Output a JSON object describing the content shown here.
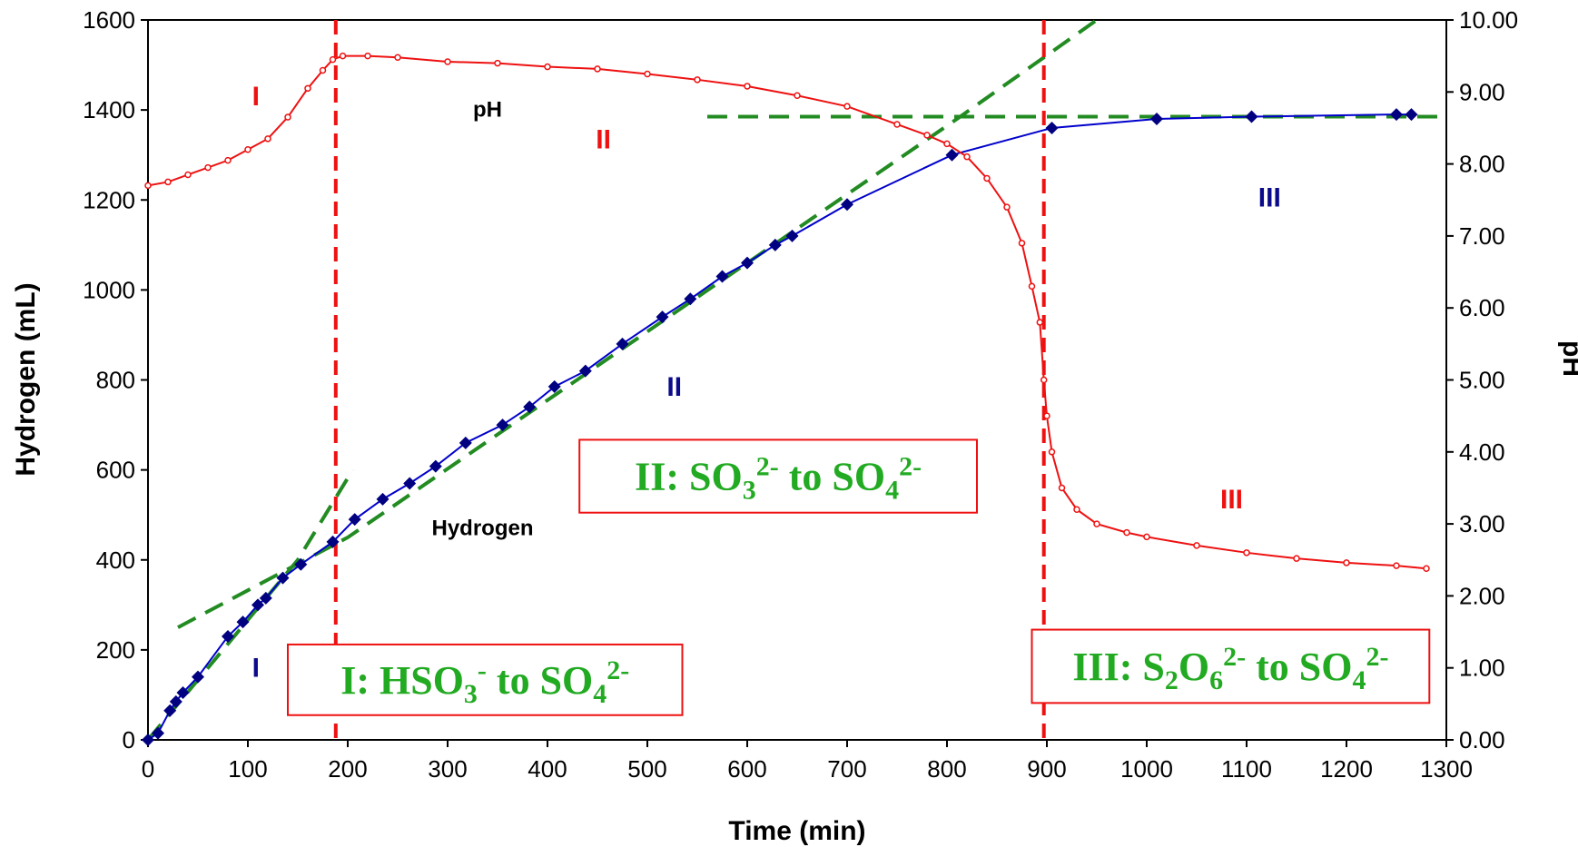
{
  "chart_data": {
    "type": "line",
    "title": "",
    "xlabel": "Time (min)",
    "ylabel": "Hydrogen (mL)",
    "y2label": "pH",
    "xlim": [
      0,
      1300
    ],
    "ylim": [
      0,
      1600
    ],
    "y2lim": [
      0,
      10
    ],
    "xticks": [
      "0",
      "100",
      "200",
      "300",
      "400",
      "500",
      "600",
      "700",
      "800",
      "900",
      "1000",
      "1100",
      "1200",
      "1300"
    ],
    "yticks": [
      "0",
      "200",
      "400",
      "600",
      "800",
      "1000",
      "1200",
      "1400",
      "1600"
    ],
    "y2ticks": [
      "0.00",
      "1.00",
      "2.00",
      "3.00",
      "4.00",
      "5.00",
      "6.00",
      "7.00",
      "8.00",
      "9.00",
      "10.00"
    ],
    "grid": false,
    "series": [
      {
        "name": "Hydrogen",
        "axis": "left",
        "color": "#0000cc",
        "marker_color": "#000080",
        "marker": "diamond",
        "x": [
          0,
          10,
          22,
          28,
          35,
          50,
          80,
          95,
          110,
          118,
          135,
          153,
          185,
          207,
          235,
          262,
          288,
          318,
          355,
          382,
          407,
          438,
          475,
          515,
          543,
          575,
          600,
          628,
          645,
          700,
          805,
          905,
          1010,
          1105,
          1250,
          1265
        ],
        "y": [
          0,
          15,
          65,
          85,
          105,
          140,
          230,
          262,
          300,
          315,
          360,
          390,
          440,
          490,
          535,
          570,
          608,
          660,
          700,
          740,
          785,
          820,
          880,
          940,
          980,
          1030,
          1060,
          1100,
          1120,
          1190,
          1300,
          1360,
          1380,
          1385,
          1390,
          1390
        ]
      },
      {
        "name": "pH",
        "axis": "right",
        "color": "#ee1111",
        "marker": "circle",
        "x": [
          0,
          20,
          40,
          60,
          80,
          100,
          120,
          140,
          160,
          175,
          185,
          195,
          220,
          250,
          300,
          350,
          400,
          450,
          500,
          550,
          600,
          650,
          700,
          750,
          780,
          800,
          820,
          840,
          860,
          875,
          885,
          893,
          897,
          900,
          905,
          915,
          930,
          950,
          980,
          1000,
          1050,
          1100,
          1150,
          1200,
          1250,
          1280
        ],
        "y": [
          7.7,
          7.75,
          7.85,
          7.95,
          8.05,
          8.2,
          8.35,
          8.65,
          9.05,
          9.3,
          9.45,
          9.5,
          9.5,
          9.48,
          9.42,
          9.4,
          9.35,
          9.32,
          9.25,
          9.17,
          9.08,
          8.95,
          8.8,
          8.55,
          8.4,
          8.28,
          8.1,
          7.8,
          7.4,
          6.9,
          6.3,
          5.8,
          5.0,
          4.5,
          4.0,
          3.5,
          3.2,
          3.0,
          2.88,
          2.82,
          2.7,
          2.6,
          2.52,
          2.46,
          2.42,
          2.38
        ]
      }
    ],
    "fit_lines": [
      {
        "color": "#228b22",
        "dash": "dashed",
        "x": [
          0,
          90,
          150,
          205
        ],
        "y": [
          0,
          240,
          400,
          600
        ]
      },
      {
        "color": "#228b22",
        "dash": "dashed",
        "x": [
          30,
          200,
          600,
          810,
          950
        ],
        "y": [
          250,
          450,
          1060,
          1380,
          1600
        ]
      },
      {
        "color": "#228b22",
        "dash": "dashed",
        "x": [
          560,
          1300
        ],
        "y": [
          1385,
          1385
        ]
      }
    ],
    "vlines": [
      {
        "x": 188,
        "color": "#ee1111"
      },
      {
        "x": 897,
        "color": "#ee1111"
      }
    ],
    "series_labels": [
      {
        "text": "pH",
        "x": 340,
        "y": 1385
      },
      {
        "text": "Hydrogen",
        "x": 335,
        "y": 455
      }
    ],
    "region_labels": [
      {
        "text": "I",
        "color": "#ee1111",
        "x": 108,
        "y": 1410
      },
      {
        "text": "II",
        "color": "#ee1111",
        "x": 456,
        "y": 1315
      },
      {
        "text": "III",
        "color": "#ee1111",
        "x": 1085,
        "y": 515
      },
      {
        "text": "I",
        "color": "#0a0a8a",
        "x": 108,
        "y": 140
      },
      {
        "text": "II",
        "color": "#0a0a8a",
        "x": 527,
        "y": 765
      },
      {
        "text": "III",
        "color": "#0a0a8a",
        "x": 1123,
        "y": 1185
      }
    ],
    "annotations": [
      {
        "main": "I: HSO",
        "sub": "3",
        "sup": "-",
        "middle": " to SO",
        "sub2": "4",
        "sup2": "2-",
        "x0": 140,
        "x1": 535,
        "y0": 55,
        "y1": 212
      },
      {
        "main": "II: SO",
        "sub": "3",
        "sup": "2-",
        "middle": "  to SO",
        "sub2": "4",
        "sup2": "2-",
        "x0": 432,
        "x1": 830,
        "y0": 505,
        "y1": 667
      },
      {
        "main": "III: S",
        "sub": "2",
        "mid0": "O",
        "sub0": "6",
        "sup": "2-",
        "middle": "  to SO",
        "sub2": "4",
        "sup2": "2-",
        "x0": 885,
        "x1": 1283,
        "y0": 82,
        "y1": 245
      }
    ]
  }
}
